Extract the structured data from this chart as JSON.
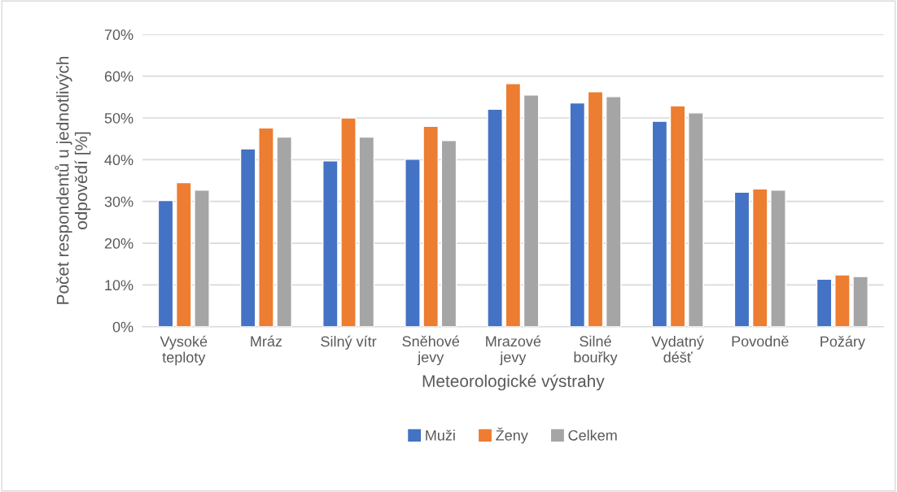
{
  "chart_data": {
    "type": "bar",
    "categories": [
      "Vysoké teploty",
      "Mráz",
      "Silný vítr",
      "Sněhové jevy",
      "Mrazové jevy",
      "Silné bouřky",
      "Vydatný déšť",
      "Povodně",
      "Požáry"
    ],
    "series": [
      {
        "name": "Muži",
        "color": "#4472c4",
        "values": [
          30.2,
          42.6,
          39.7,
          40.1,
          52.1,
          53.6,
          49.2,
          32.2,
          11.4
        ]
      },
      {
        "name": "Ženy",
        "color": "#ed7d31",
        "values": [
          34.5,
          47.6,
          50.0,
          48.0,
          58.2,
          56.3,
          52.9,
          33.0,
          12.4
        ]
      },
      {
        "name": "Celkem",
        "color": "#a5a5a5",
        "values": [
          32.7,
          45.4,
          45.4,
          44.6,
          55.5,
          55.1,
          51.2,
          32.7,
          12.0
        ]
      }
    ],
    "xlabel": "Meteorologické výstrahy",
    "ylabel": "Počet respondentů u jednotlivých odpovědí [%]",
    "ylim": [
      0,
      70
    ],
    "yticks": [
      {
        "value": 0,
        "label": "0%"
      },
      {
        "value": 10,
        "label": "10%"
      },
      {
        "value": 20,
        "label": "20%"
      },
      {
        "value": 30,
        "label": "30%"
      },
      {
        "value": 40,
        "label": "40%"
      },
      {
        "value": 50,
        "label": "50%"
      },
      {
        "value": 60,
        "label": "60%"
      },
      {
        "value": 70,
        "label": "70%"
      }
    ],
    "grid": "y",
    "legend": "bottom"
  }
}
